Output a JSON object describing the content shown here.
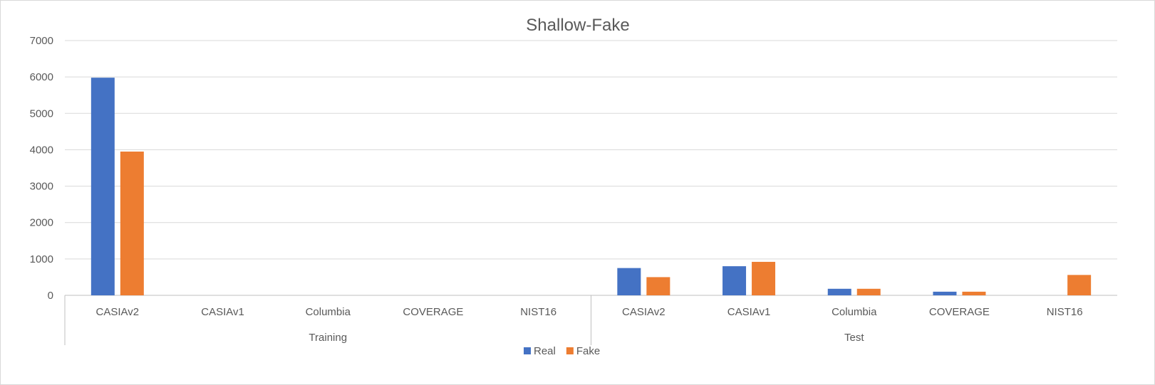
{
  "chart_data": {
    "type": "bar",
    "title": "Shallow-Fake",
    "xlabel": "",
    "ylabel": "",
    "ylim": [
      0,
      7000
    ],
    "yticks": [
      0,
      1000,
      2000,
      3000,
      4000,
      5000,
      6000,
      7000
    ],
    "grid": true,
    "legend_position": "bottom",
    "groups": [
      {
        "label": "Training",
        "categories": [
          "CASIAv2",
          "CASIAv1",
          "Columbia",
          "COVERAGE",
          "NIST16"
        ]
      },
      {
        "label": "Test",
        "categories": [
          "CASIAv2",
          "CASIAv1",
          "Columbia",
          "COVERAGE",
          "NIST16"
        ]
      }
    ],
    "series": [
      {
        "name": "Real",
        "color": "#4472c4",
        "values": [
          5980,
          0,
          0,
          0,
          0,
          750,
          800,
          180,
          100,
          0
        ]
      },
      {
        "name": "Fake",
        "color": "#ed7d31",
        "values": [
          3950,
          0,
          0,
          0,
          0,
          500,
          920,
          180,
          100,
          560
        ]
      }
    ]
  }
}
